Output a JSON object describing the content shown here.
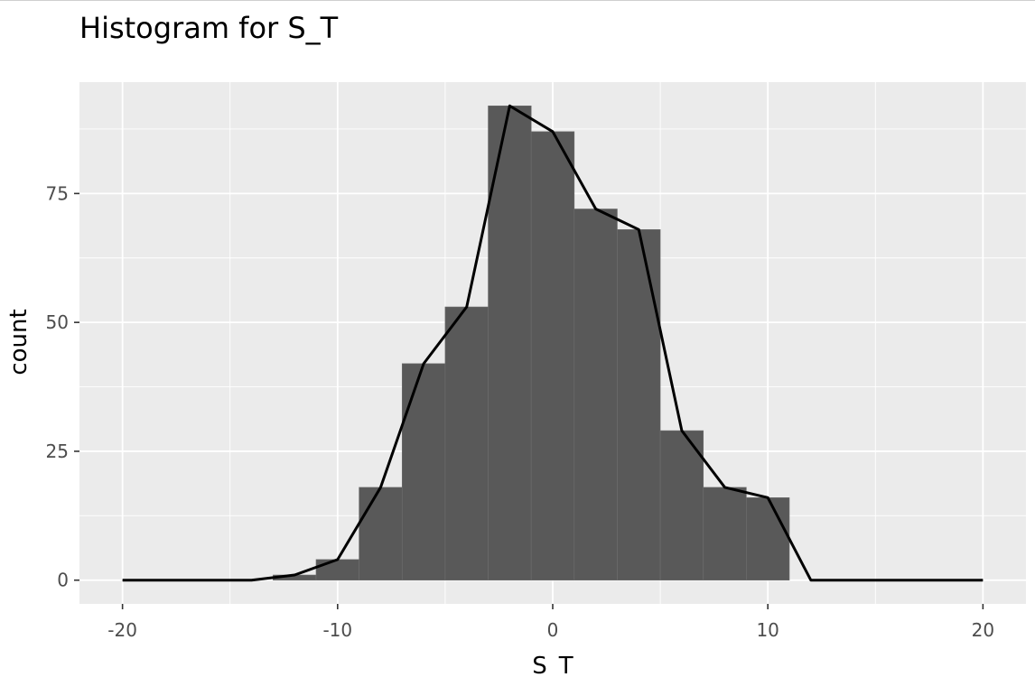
{
  "chart_data": {
    "type": "bar",
    "title": "Histogram for S_T",
    "xlabel": "S_T",
    "ylabel": "count",
    "xlim": [
      -22,
      22
    ],
    "ylim": [
      -4.6,
      96.6
    ],
    "x_ticks": [
      -20,
      -10,
      0,
      10,
      20
    ],
    "y_ticks": [
      0,
      25,
      50,
      75
    ],
    "grid": true,
    "colors": {
      "panel": "#ebebeb",
      "grid": "#ffffff",
      "bar": "#595959",
      "bar_edge": "#6e6e6e",
      "line": "#000000"
    },
    "bins": [
      {
        "x0": -13,
        "x1": -11,
        "count": 1
      },
      {
        "x0": -11,
        "x1": -9,
        "count": 4
      },
      {
        "x0": -9,
        "x1": -7,
        "count": 18
      },
      {
        "x0": -7,
        "x1": -5,
        "count": 42
      },
      {
        "x0": -5,
        "x1": -3,
        "count": 53
      },
      {
        "x0": -3,
        "x1": -1,
        "count": 92
      },
      {
        "x0": -1,
        "x1": 1,
        "count": 87
      },
      {
        "x0": 1,
        "x1": 3,
        "count": 72
      },
      {
        "x0": 3,
        "x1": 5,
        "count": 68
      },
      {
        "x0": 5,
        "x1": 7,
        "count": 29
      },
      {
        "x0": 7,
        "x1": 9,
        "count": 18
      },
      {
        "x0": 9,
        "x1": 11,
        "count": 16
      }
    ],
    "line_series": {
      "name": "frequency polygon",
      "x": [
        -20,
        -14,
        -12,
        -10,
        -8,
        -6,
        -4,
        -2,
        0,
        2,
        4,
        6,
        8,
        10,
        12,
        20
      ],
      "y": [
        0,
        0,
        1,
        4,
        18,
        42,
        53,
        92,
        87,
        72,
        68,
        29,
        18,
        16,
        0,
        0
      ]
    }
  }
}
